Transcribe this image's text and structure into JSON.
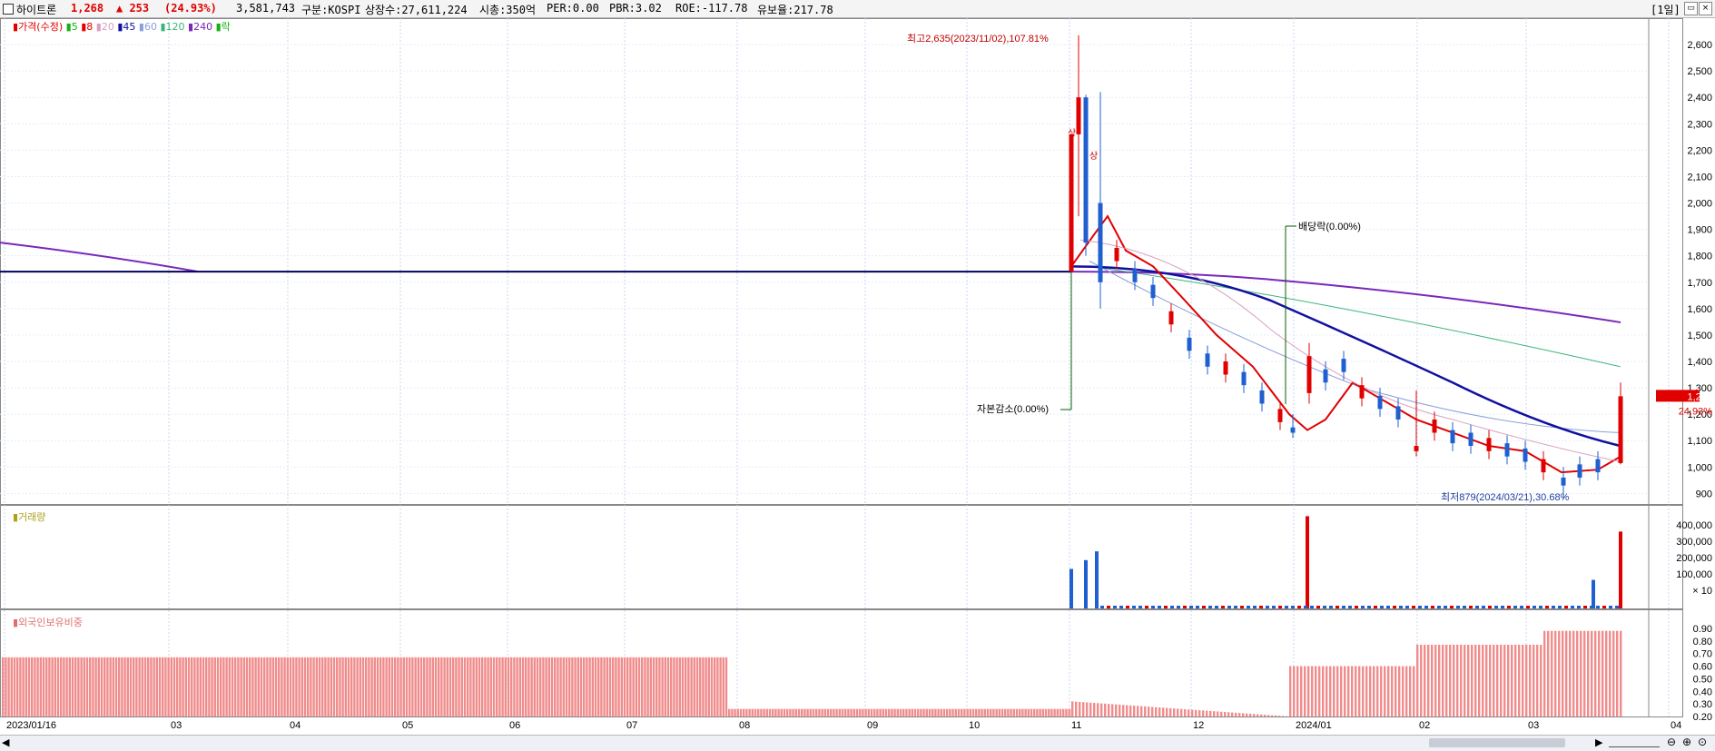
{
  "header": {
    "name": "하이트론",
    "price": "1,268",
    "change": "▲ 253",
    "change_pct": "(24.93%)",
    "volume": "3,581,743",
    "market": "구분:KOSPI",
    "shares": "상장수:27,611,224",
    "mcap": "시총:350억",
    "per": "PER:0.00",
    "pbr": "PBR:3.02",
    "roe": "ROE:-117.78",
    "float": "유보율:217.78",
    "period": "[1일]",
    "colors": {
      "up": "#e00000",
      "down": "#1f5fd0",
      "ma5": "#16b016",
      "ma8": "#e00000",
      "ma20": "#d8a0c0",
      "ma45": "#1010a0",
      "ma60": "#8aa0d8",
      "ma120": "#3cb37a",
      "ma240": "#7a28b8",
      "foreign": "#f08c8c"
    }
  },
  "price_legend": {
    "price": "가격(수정)",
    "ma5": "5",
    "ma8": "8",
    "ma20": "20",
    "ma45": "45",
    "ma60": "60",
    "ma120": "120",
    "ma240": "240",
    "event": "락"
  },
  "volume_legend": "거래량",
  "foreign_legend": "외국인보유비중",
  "annotations": {
    "high": "최고2,635(2023/11/02),107.81%",
    "low": "최저879(2024/03/21),30.68%",
    "capital": "자본감소(0.00%)",
    "dividend": "배당락(0.00%)",
    "mark": "상"
  },
  "current": {
    "price": "1,268",
    "pct": "24.93%"
  },
  "axes": {
    "price_ticks": [
      "2,600",
      "2,500",
      "2,400",
      "2,300",
      "2,200",
      "2,100",
      "2,000",
      "1,900",
      "1,800",
      "1,700",
      "1,600",
      "1,500",
      "1,400",
      "1,300",
      "1,200",
      "1,100",
      "1,000",
      "900"
    ],
    "volume_ticks": [
      "400,000",
      "300,000",
      "200,000",
      "100,000",
      "× 10"
    ],
    "foreign_ticks": [
      "0.90",
      "0.80",
      "0.70",
      "0.60",
      "0.50",
      "0.40",
      "0.30",
      "0.20"
    ],
    "x_ticks": [
      "2023/01/16",
      "03",
      "04",
      "05",
      "06",
      "07",
      "08",
      "09",
      "10",
      "11",
      "12",
      "2024/01",
      "02",
      "03",
      "04"
    ]
  },
  "chart_data": {
    "type": "candlestick",
    "price_range": [
      860,
      2700
    ],
    "flat_price": 1740,
    "ohlc_key_points": [
      {
        "date": "2023/11/01",
        "open": 1740,
        "high": 2260,
        "low": 1740,
        "close": 2260
      },
      {
        "date": "2023/11/02",
        "open": 2260,
        "high": 2635,
        "low": 1950,
        "close": 2400
      },
      {
        "date": "2023/11/03",
        "open": 2400,
        "high": 2410,
        "low": 1800,
        "close": 1850
      },
      {
        "date": "2023/11/08",
        "open": 2000,
        "high": 2420,
        "low": 1600,
        "close": 1700
      },
      {
        "date": "2023/12/28",
        "open": 1150,
        "high": 1200,
        "low": 1110,
        "close": 1130
      },
      {
        "date": "2024/01/03",
        "open": 1280,
        "high": 1470,
        "low": 1240,
        "close": 1420
      },
      {
        "date": "2024/02/26",
        "open": 1060,
        "high": 1290,
        "low": 1040,
        "close": 1080
      },
      {
        "date": "2024/03/21",
        "open": 960,
        "high": 1000,
        "low": 879,
        "close": 930
      },
      {
        "date": "2024/03/26",
        "open": 1015,
        "high": 1320,
        "low": 1010,
        "close": 1268
      }
    ],
    "ma240_start": 1850,
    "ma240_end": 1548,
    "ma120_end": 1380,
    "volume_peaks": [
      {
        "date": "2023/11/01",
        "value": 180000
      },
      {
        "date": "2023/11/03",
        "value": 220000
      },
      {
        "date": "2023/11/06",
        "value": 260000
      },
      {
        "date": "2024/01/02",
        "value": 420000
      },
      {
        "date": "2024/03/22",
        "value": 130000
      },
      {
        "date": "2024/03/26",
        "value": 350000
      }
    ],
    "foreign_ratio": {
      "range": [
        0.2,
        0.95
      ],
      "2023/01-07": 0.67,
      "2023/08-10": 0.26,
      "2023/11": 0.32,
      "2024/01": 0.6,
      "2024/02": 0.77,
      "2024/03": 0.88
    }
  }
}
